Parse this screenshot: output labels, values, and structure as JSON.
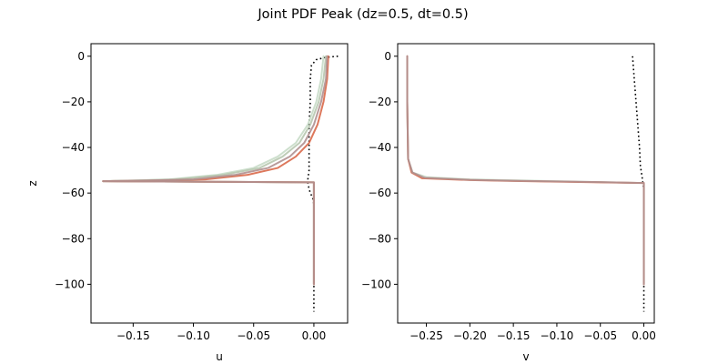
{
  "title": "Joint PDF Peak (dz=0.5, dt=0.5)",
  "colors": {
    "black_dotted": "#000000",
    "orange": "#d9694a",
    "red_brown": "#c0504d",
    "rose": "#c48b8b",
    "light_green": "#c8dcc8",
    "sage": "#b8c8b0",
    "grey_rose": "#b09090"
  },
  "chart_data": [
    {
      "type": "line",
      "xlabel": "u",
      "ylabel": "z",
      "xlim": [
        -0.185,
        0.028
      ],
      "ylim": [
        -117,
        5.5
      ],
      "xticks": [
        -0.15,
        -0.1,
        -0.05,
        0.0
      ],
      "xtick_labels": [
        "−0.15",
        "−0.10",
        "−0.05",
        "0.00"
      ],
      "yticks": [
        0,
        -20,
        -40,
        -60,
        -80,
        -100
      ],
      "ytick_labels": [
        "0",
        "−20",
        "−40",
        "−60",
        "−80",
        "−100"
      ],
      "series": [
        {
          "style": "dotted",
          "color": "#000000",
          "x": [
            0.02,
            0.01,
            0.002,
            -0.002,
            -0.003,
            -0.003,
            -0.004,
            -0.004,
            -0.004,
            -0.004,
            -0.005,
            -0.005,
            -0.004,
            -0.003,
            -0.001,
            0.0,
            0.0,
            0.0,
            0.0,
            0.0
          ],
          "y": [
            0,
            -0.5,
            -1.5,
            -4,
            -10,
            -20,
            -30,
            -40,
            -45,
            -50,
            -54,
            -56,
            -58,
            -60,
            -62,
            -65,
            -70,
            -80,
            -100,
            -112
          ]
        },
        {
          "style": "solid",
          "color": "#c8dcc8",
          "x": [
            0.008,
            0.006,
            0.002,
            -0.005,
            -0.015,
            -0.03,
            -0.05,
            -0.08,
            -0.12,
            -0.15,
            -0.175,
            0.0,
            0.0,
            0.0
          ],
          "y": [
            0,
            -10,
            -20,
            -30,
            -38,
            -44,
            -49,
            -52,
            -54,
            -54.5,
            -54.8,
            -55.3,
            -56,
            -100
          ]
        },
        {
          "style": "solid",
          "color": "#b8c8b0",
          "x": [
            0.01,
            0.008,
            0.004,
            -0.003,
            -0.012,
            -0.026,
            -0.045,
            -0.075,
            -0.115,
            -0.15,
            -0.175,
            0.0,
            0.0,
            0.0
          ],
          "y": [
            0,
            -10,
            -20,
            -30,
            -38,
            -44,
            -49,
            -52,
            -54,
            -54.5,
            -54.8,
            -55.3,
            -56,
            -100
          ]
        },
        {
          "style": "solid",
          "color": "#d9694a",
          "x": [
            0.012,
            0.011,
            0.008,
            0.003,
            -0.004,
            -0.015,
            -0.03,
            -0.055,
            -0.09,
            -0.13,
            -0.175,
            0.0,
            0.0,
            0.0
          ],
          "y": [
            0,
            -10,
            -20,
            -30,
            -38,
            -44,
            -49,
            -52,
            -54,
            -54.5,
            -54.8,
            -55.3,
            -56,
            -100
          ]
        },
        {
          "style": "solid",
          "color": "#b09090",
          "x": [
            0.011,
            0.01,
            0.006,
            0.0,
            -0.008,
            -0.02,
            -0.038,
            -0.065,
            -0.1,
            -0.14,
            -0.175,
            0.0,
            0.0,
            0.0
          ],
          "y": [
            0,
            -10,
            -20,
            -30,
            -38,
            -44,
            -49,
            -52,
            -54,
            -54.5,
            -54.8,
            -55.3,
            -56,
            -100
          ]
        }
      ]
    },
    {
      "type": "line",
      "xlabel": "v",
      "ylabel": "",
      "xlim": [
        -0.283,
        0.012
      ],
      "ylim": [
        -117,
        5.5
      ],
      "xticks": [
        -0.25,
        -0.2,
        -0.15,
        -0.1,
        -0.05,
        0.0
      ],
      "xtick_labels": [
        "−0.25",
        "−0.20",
        "−0.15",
        "−0.10",
        "−0.05",
        "0.00"
      ],
      "yticks": [
        0,
        -20,
        -40,
        -60,
        -80,
        -100
      ],
      "ytick_labels": [
        "0",
        "−20",
        "−40",
        "−60",
        "−80",
        "−100"
      ],
      "series": [
        {
          "style": "dotted",
          "color": "#000000",
          "x": [
            -0.013,
            -0.011,
            -0.009,
            -0.007,
            -0.005,
            -0.004,
            -0.002,
            -0.001,
            0.0,
            0.0,
            0.0,
            0.0
          ],
          "y": [
            0,
            -10,
            -20,
            -30,
            -40,
            -48,
            -53,
            -56,
            -58,
            -65,
            -80,
            -112
          ]
        },
        {
          "style": "solid",
          "color": "#c8dcc8",
          "x": [
            -0.272,
            -0.272,
            -0.271,
            -0.266,
            -0.25,
            -0.2,
            -0.15,
            -0.1,
            -0.05,
            0.0,
            0.0,
            0.0
          ],
          "y": [
            0,
            -20,
            -45,
            -51,
            -53,
            -54,
            -54.4,
            -54.8,
            -55.2,
            -55.6,
            -56,
            -100
          ]
        },
        {
          "style": "solid",
          "color": "#d9694a",
          "x": [
            -0.272,
            -0.272,
            -0.271,
            -0.267,
            -0.255,
            -0.2,
            -0.15,
            -0.1,
            -0.05,
            0.0,
            0.0,
            0.0
          ],
          "y": [
            0,
            -20,
            -45,
            -51,
            -53.5,
            -54.3,
            -54.7,
            -55,
            -55.3,
            -55.6,
            -56,
            -100
          ]
        },
        {
          "style": "solid",
          "color": "#b09090",
          "x": [
            -0.272,
            -0.272,
            -0.271,
            -0.266,
            -0.252,
            -0.2,
            -0.15,
            -0.1,
            -0.05,
            0.0,
            0.0,
            0.0
          ],
          "y": [
            0,
            -20,
            -45,
            -51,
            -53.3,
            -54.2,
            -54.6,
            -54.9,
            -55.2,
            -55.6,
            -56,
            -100
          ]
        }
      ]
    }
  ]
}
